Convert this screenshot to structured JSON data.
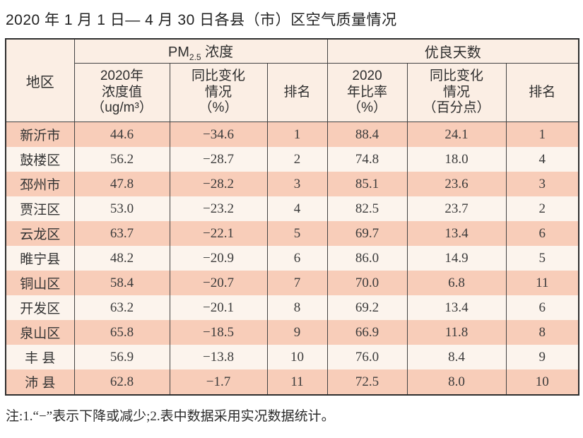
{
  "title": "2020 年 1 月 1 日— 4 月 30 日各县（市）区空气质量情况",
  "footnote": "注:1.“−”表示下降或减少;2.表中数据采用实况数据统计。",
  "colors": {
    "row_pink": "#f8cdb9",
    "row_light": "#fcf4ed",
    "header_bg": "#fbeee4",
    "border_dark": "#434343",
    "outer_border": "#2e2e2e"
  },
  "table": {
    "header": {
      "region": "地区",
      "pm25": {
        "prefix": "PM",
        "sub": "2.5",
        "suffix": " 浓度"
      },
      "good_days": "优良天数",
      "pm25_value": "2020年\n浓度值\n（ug/m³）",
      "pm25_change": "同比变化\n情况\n（%）",
      "pm25_rank": "排名",
      "good_rate": "2020\n年比率\n（%）",
      "good_change": "同比变化\n情况\n（百分点）",
      "good_rank": "排名"
    },
    "rows": [
      {
        "region": "新沂市",
        "pm_value": "44.6",
        "pm_change": "−34.6",
        "pm_rank": "1",
        "good_rate": "88.4",
        "good_change": "24.1",
        "good_rank": "1"
      },
      {
        "region": "鼓楼区",
        "pm_value": "56.2",
        "pm_change": "−28.7",
        "pm_rank": "2",
        "good_rate": "74.8",
        "good_change": "18.0",
        "good_rank": "4"
      },
      {
        "region": "邳州市",
        "pm_value": "47.8",
        "pm_change": "−28.2",
        "pm_rank": "3",
        "good_rate": "85.1",
        "good_change": "23.6",
        "good_rank": "3"
      },
      {
        "region": "贾汪区",
        "pm_value": "53.0",
        "pm_change": "−23.2",
        "pm_rank": "4",
        "good_rate": "82.5",
        "good_change": "23.7",
        "good_rank": "2"
      },
      {
        "region": "云龙区",
        "pm_value": "63.7",
        "pm_change": "−22.1",
        "pm_rank": "5",
        "good_rate": "69.7",
        "good_change": "13.4",
        "good_rank": "6"
      },
      {
        "region": "睢宁县",
        "pm_value": "48.2",
        "pm_change": "−20.9",
        "pm_rank": "6",
        "good_rate": "86.0",
        "good_change": "14.9",
        "good_rank": "5"
      },
      {
        "region": "铜山区",
        "pm_value": "58.4",
        "pm_change": "−20.7",
        "pm_rank": "7",
        "good_rate": "70.0",
        "good_change": "6.8",
        "good_rank": "11"
      },
      {
        "region": "开发区",
        "pm_value": "63.2",
        "pm_change": "−20.1",
        "pm_rank": "8",
        "good_rate": "69.2",
        "good_change": "13.4",
        "good_rank": "6"
      },
      {
        "region": "泉山区",
        "pm_value": "65.8",
        "pm_change": "−18.5",
        "pm_rank": "9",
        "good_rate": "66.9",
        "good_change": "11.8",
        "good_rank": "8"
      },
      {
        "region": "丰 县",
        "pm_value": "56.9",
        "pm_change": "−13.8",
        "pm_rank": "10",
        "good_rate": "76.0",
        "good_change": "8.4",
        "good_rank": "9"
      },
      {
        "region": "沛 县",
        "pm_value": "62.8",
        "pm_change": "−1.7",
        "pm_rank": "11",
        "good_rate": "72.5",
        "good_change": "8.0",
        "good_rank": "10"
      }
    ]
  }
}
